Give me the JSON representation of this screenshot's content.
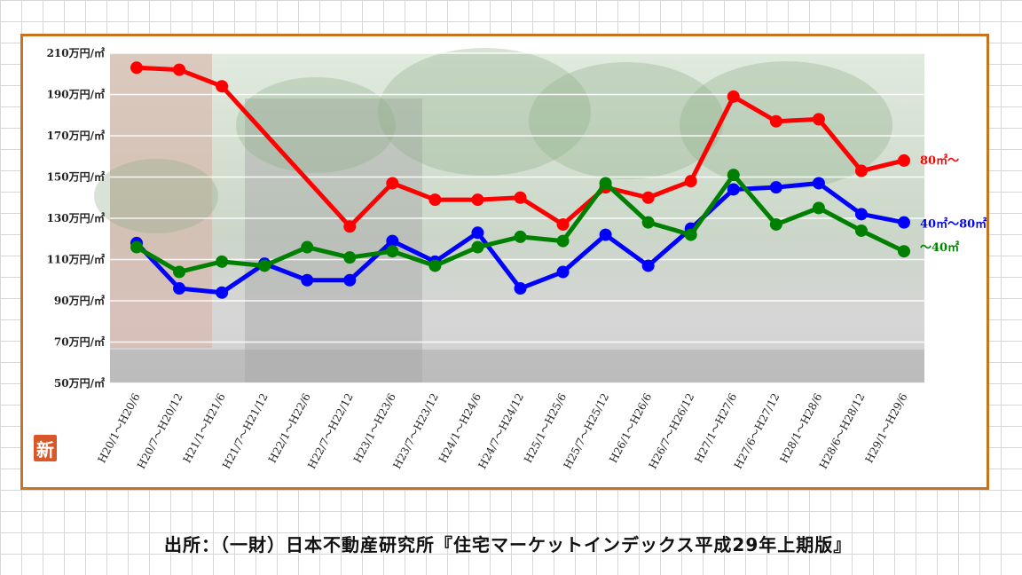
{
  "chart_data": {
    "type": "line",
    "title": "",
    "xlabel": "",
    "ylabel": "",
    "ylim": [
      50,
      210
    ],
    "yticks": [
      "50万円/㎡",
      "70万円/㎡",
      "90万円/㎡",
      "110万円/㎡",
      "130万円/㎡",
      "150万円/㎡",
      "170万円/㎡",
      "190万円/㎡",
      "210万円/㎡"
    ],
    "categories": [
      "H20/1～H20/6",
      "H20/7～H20/12",
      "H21/1～H21/6",
      "H21/7～H21/12",
      "H22/1～H22/6",
      "H22/7～H22/12",
      "H23/1～H23/6",
      "H23/7～H23/12",
      "H24/1～H24/6",
      "H24/7～H24/12",
      "H25/1～H25/6",
      "H25/7～H25/12",
      "H26/1～H26/6",
      "H26/7～H26/12",
      "H27/1～H27/6",
      "H27/6～H27/12",
      "H28/1～H28/6",
      "H28/6～H28/12",
      "H29/1～H29/6"
    ],
    "grid": true,
    "series": [
      {
        "name": "80㎡～",
        "color": "#ff0000",
        "values": [
          203,
          202,
          194,
          null,
          null,
          126,
          147,
          139,
          139,
          140,
          127,
          145,
          140,
          148,
          189,
          177,
          178,
          153,
          158
        ]
      },
      {
        "name": "40㎡～80㎡",
        "color": "#0000ff",
        "values": [
          118,
          96,
          94,
          108,
          100,
          100,
          119,
          109,
          123,
          96,
          104,
          122,
          107,
          125,
          144,
          145,
          147,
          132,
          128
        ]
      },
      {
        "name": "～40㎡",
        "color": "#008000",
        "values": [
          116,
          104,
          109,
          107,
          116,
          111,
          114,
          107,
          116,
          121,
          119,
          147,
          128,
          122,
          151,
          127,
          135,
          124,
          114
        ]
      }
    ]
  },
  "source_note": "出所：（一財）日本不動産研究所『住宅マーケットインデックス平成29年上期版』",
  "stamp": "新"
}
